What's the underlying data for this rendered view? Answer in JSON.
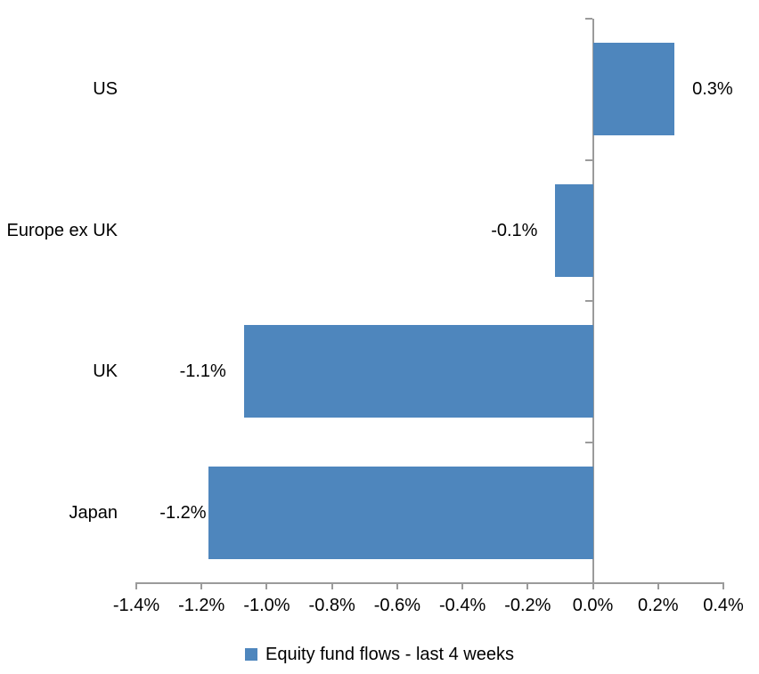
{
  "chart_data": {
    "type": "bar",
    "orientation": "horizontal",
    "title": "",
    "categories": [
      "US",
      "Europe ex UK",
      "UK",
      "Japan"
    ],
    "series": [
      {
        "name": "Equity fund flows - last 4 weeks",
        "values": [
          0.3,
          -0.1,
          -1.1,
          -1.2
        ],
        "data_labels": [
          "0.3%",
          "-0.1%",
          "-1.1%",
          "-1.2%"
        ],
        "bar_lengths_as_drawn": [
          0.25,
          -0.115,
          -1.07,
          -1.18
        ]
      }
    ],
    "unit": "%",
    "xlabel": "",
    "ylabel": "",
    "xlim": [
      -1.4,
      0.4
    ],
    "x_ticks": [
      -1.4,
      -1.2,
      -1.0,
      -0.8,
      -0.6,
      -0.4,
      -0.2,
      0.0,
      0.2,
      0.4
    ],
    "x_tick_labels": [
      "-1.4%",
      "-1.2%",
      "-1.0%",
      "-0.8%",
      "-0.6%",
      "-0.4%",
      "-0.2%",
      "0.0%",
      "0.2%",
      "0.4%"
    ],
    "grid": false,
    "legend": {
      "position": "bottom",
      "label": "Equity fund flows - last 4 weeks"
    },
    "colors": {
      "bar": "#4E86BD",
      "axis": "#9B9B9B",
      "text": "#000000",
      "background": "#FFFFFF"
    }
  }
}
